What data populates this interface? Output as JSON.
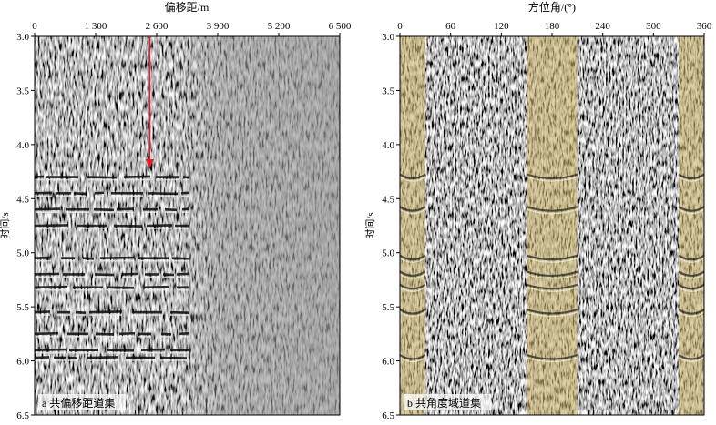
{
  "chart_data": [
    {
      "type": "heatmap",
      "panel_label": "a 共偏移距道集",
      "xlabel": "偏移距/m",
      "ylabel": "时间/s",
      "xlim": [
        0,
        6500
      ],
      "ylim": [
        3.0,
        6.5
      ],
      "y_inverted": true,
      "x_ticks": [
        0,
        1300,
        2600,
        3900,
        5200,
        6500
      ],
      "x_tick_labels": [
        "0",
        "1 300",
        "2 600",
        "3 900",
        "5 200",
        "6 500"
      ],
      "y_ticks": [
        3.0,
        3.5,
        4.0,
        4.5,
        5.0,
        5.5,
        6.0,
        6.5
      ],
      "y_tick_labels": [
        "3.0",
        "3.5",
        "4.0",
        "4.5",
        "5.0",
        "5.5",
        "6.0",
        "6.5"
      ],
      "colormap": "grayscale seismic amplitude",
      "strong_reflector_offset_range": [
        0,
        3300
      ],
      "strong_reflector_times": [
        4.3,
        4.45,
        4.6,
        4.75,
        5.05,
        5.2,
        5.32,
        5.55,
        5.75,
        5.9,
        5.97
      ],
      "annotation_arrow": {
        "color": "#e0202a",
        "x": 2450,
        "y_from": 3.0,
        "y_to": 4.2
      }
    },
    {
      "type": "heatmap",
      "panel_label": "b 共角度域道集",
      "xlabel": "方位角/(°)",
      "ylabel": "时间/s",
      "xlim": [
        0,
        360
      ],
      "ylim": [
        3.0,
        6.5
      ],
      "y_inverted": true,
      "x_ticks": [
        0,
        60,
        120,
        180,
        240,
        300,
        360
      ],
      "x_tick_labels": [
        "0",
        "60",
        "120",
        "180",
        "240",
        "300",
        "360"
      ],
      "y_ticks": [
        3.0,
        3.5,
        4.0,
        4.5,
        5.0,
        5.5,
        6.0,
        6.5
      ],
      "y_tick_labels": [
        "3.0",
        "3.5",
        "4.0",
        "4.5",
        "5.0",
        "5.5",
        "6.0",
        "6.5"
      ],
      "colormap": "grayscale seismic amplitude",
      "highlight_color": "#c9b46a",
      "highlight_bands": [
        [
          0,
          30
        ],
        [
          150,
          210
        ],
        [
          330,
          360
        ]
      ],
      "curved_event_times": [
        4.3,
        4.6,
        5.05,
        5.2,
        5.32,
        5.55,
        5.97
      ]
    }
  ]
}
